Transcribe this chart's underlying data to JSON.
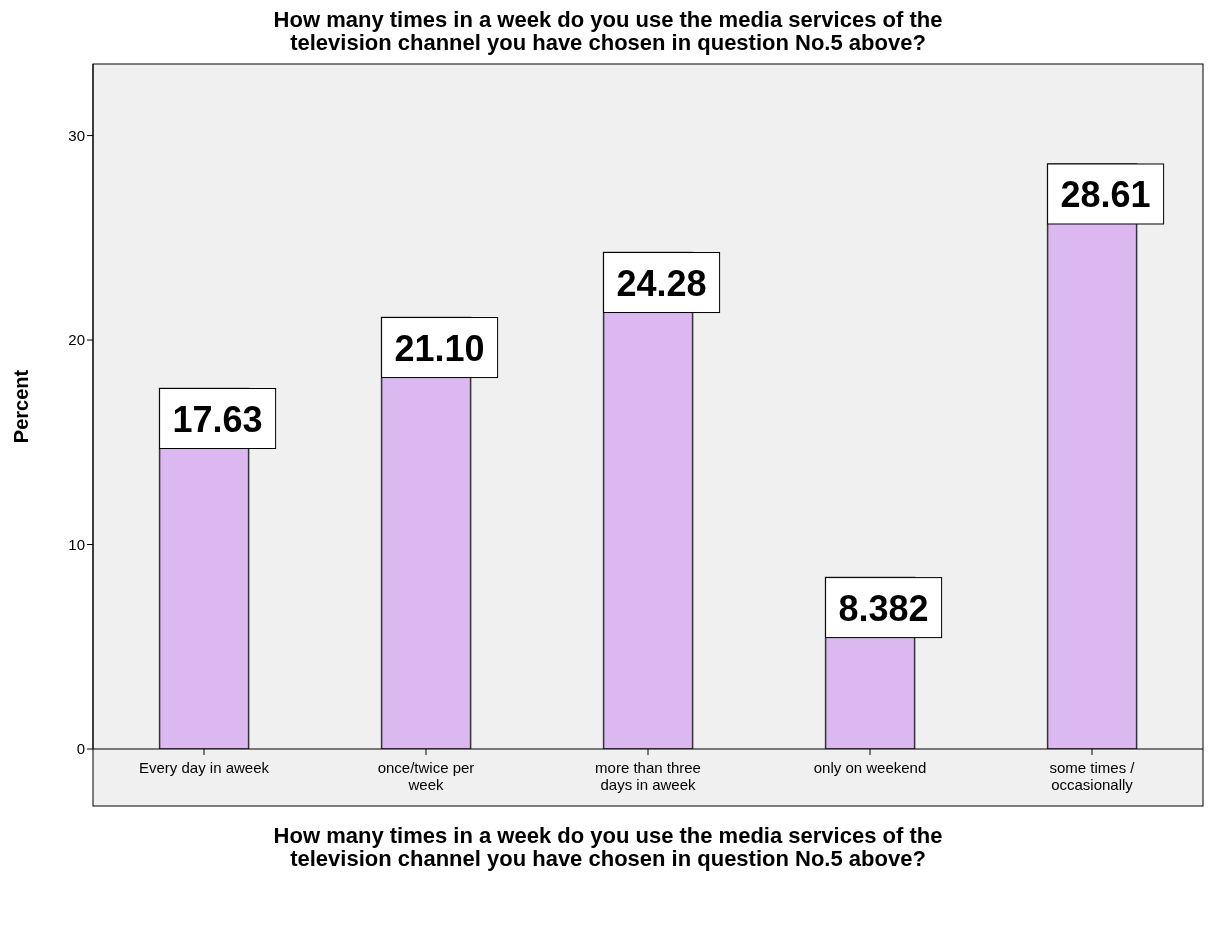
{
  "chart_data": {
    "type": "bar",
    "title": "How many times in a week do you use the media services of the television channel you have chosen in question No.5 above?",
    "xlabel": "How many times in a week do you use the media services of the television channel you have chosen in question No.5 above?",
    "ylabel": "Percent",
    "categories": [
      "Every day in aweek",
      "once/twice per week",
      "more than three days in aweek",
      "only on weekend",
      "some times / occasionally"
    ],
    "values": [
      17.63,
      21.1,
      24.28,
      8.382,
      28.61
    ],
    "value_labels": [
      "17.63",
      "21.10",
      "24.28",
      "8.382",
      "28.61"
    ],
    "color": "#dcb8f0",
    "ylim": [
      0,
      33.5
    ],
    "yticks": [
      0,
      10,
      20,
      30
    ],
    "grid": false
  }
}
